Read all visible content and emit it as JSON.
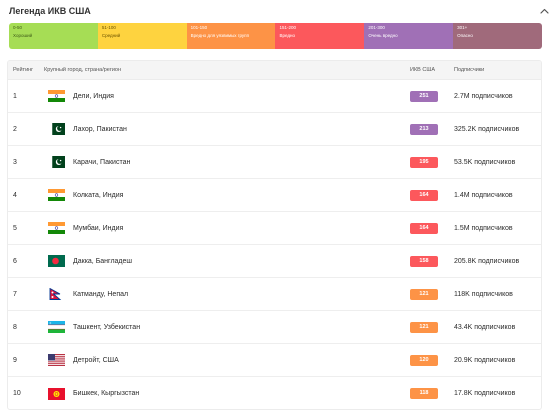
{
  "legend": {
    "title": "Легенда ИКВ США",
    "segments": [
      {
        "range": "0-50",
        "label": "Хороший",
        "bg": "#a6dd55",
        "fg": "#3d5a17"
      },
      {
        "range": "51-100",
        "label": "Средний",
        "bg": "#fed33f",
        "fg": "#6b5300"
      },
      {
        "range": "101-150",
        "label": "Вредно для уязвимых групп",
        "bg": "#fd9346",
        "fg": "#ffffff"
      },
      {
        "range": "151-200",
        "label": "Вредно",
        "bg": "#fc585c",
        "fg": "#ffffff"
      },
      {
        "range": "201-300",
        "label": "Очень вредно",
        "bg": "#a070b6",
        "fg": "#ffffff"
      },
      {
        "range": "301+",
        "label": "Опасно",
        "bg": "#a06a7b",
        "fg": "#ffffff"
      }
    ]
  },
  "table": {
    "headers": {
      "rank": "Рейтинг",
      "city": "Крупный город, страна/регион",
      "aqi": "ИКВ США",
      "subs": "Подписчики"
    },
    "rows": [
      {
        "rank": "1",
        "city": "Дели, Индия",
        "flag": "india",
        "aqi": "251",
        "aqi_color": "#a070b6",
        "subs": "2.7M подписчиков"
      },
      {
        "rank": "2",
        "city": "Лахор, Пакистан",
        "flag": "pakistan",
        "aqi": "213",
        "aqi_color": "#a070b6",
        "subs": "325.2K подписчиков"
      },
      {
        "rank": "3",
        "city": "Карачи, Пакистан",
        "flag": "pakistan",
        "aqi": "195",
        "aqi_color": "#fc585c",
        "subs": "53.5K подписчиков"
      },
      {
        "rank": "4",
        "city": "Колката, Индия",
        "flag": "india",
        "aqi": "164",
        "aqi_color": "#fc585c",
        "subs": "1.4M подписчиков"
      },
      {
        "rank": "5",
        "city": "Мумбаи, Индия",
        "flag": "india",
        "aqi": "164",
        "aqi_color": "#fc585c",
        "subs": "1.5M подписчиков"
      },
      {
        "rank": "6",
        "city": "Дакка, Бангладеш",
        "flag": "bangladesh",
        "aqi": "158",
        "aqi_color": "#fc585c",
        "subs": "205.8K подписчиков"
      },
      {
        "rank": "7",
        "city": "Катманду, Непал",
        "flag": "nepal",
        "aqi": "121",
        "aqi_color": "#fd9346",
        "subs": "118K подписчиков"
      },
      {
        "rank": "8",
        "city": "Ташкент, Узбекистан",
        "flag": "uzbekistan",
        "aqi": "121",
        "aqi_color": "#fd9346",
        "subs": "43.4K подписчиков"
      },
      {
        "rank": "9",
        "city": "Детройт, США",
        "flag": "usa",
        "aqi": "120",
        "aqi_color": "#fd9346",
        "subs": "20.9K подписчиков"
      },
      {
        "rank": "10",
        "city": "Бишкек, Кыргызстан",
        "flag": "kyrgyzstan",
        "aqi": "118",
        "aqi_color": "#fd9346",
        "subs": "17.8K подписчиков"
      }
    ]
  }
}
